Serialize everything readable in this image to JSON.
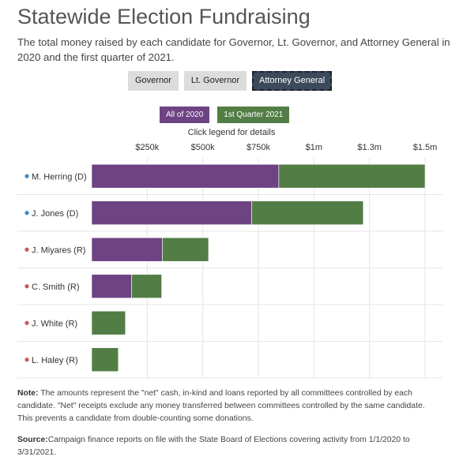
{
  "title": "Statewide Election Fundraising",
  "subtitle": "The total money raised by each candidate for Governor, Lt. Governor, and Attorney General in 2020 and the first quarter of 2021.",
  "tabs": [
    {
      "label": "Governor",
      "active": false
    },
    {
      "label": "Lt. Governor",
      "active": false
    },
    {
      "label": "Attorney General",
      "active": true
    }
  ],
  "legend_hint": "Click legend for details",
  "note": {
    "label": "Note:",
    "text": " The amounts represent the \"net\" cash, in-kind and loans reported by all committees controlled by each candidate. \"Net\" receipts exclude any money transferred between committees controlled by the same candidate. This prevents a candidate from double-counting some donations."
  },
  "source": {
    "label": "Source:",
    "text": "Campaign finance reports on file with the State Board of Elections covering activity from 1/1/2020 to 3/31/2021."
  },
  "colors": {
    "series_2020": "#6e4383",
    "series_q1_2021": "#527d45",
    "dem": "#3b8fd0",
    "rep": "#cc5a5a",
    "grid": "#e4e4e4"
  },
  "chart_data": {
    "type": "bar",
    "orientation": "horizontal",
    "stacked": true,
    "categories": [
      "M. Herring (D)",
      "J. Jones (D)",
      "J. Miyares (R)",
      "C. Smith (R)",
      "J. White (R)",
      "L. Haley (R)"
    ],
    "party": [
      "D",
      "D",
      "R",
      "R",
      "R",
      "R"
    ],
    "series": [
      {
        "name": "All of 2020",
        "values": [
          842000,
          720000,
          318000,
          180000,
          0,
          0
        ]
      },
      {
        "name": "1st Quarter 2021",
        "values": [
          658000,
          502000,
          208000,
          135000,
          152000,
          120000
        ]
      }
    ],
    "x_ticks": [
      250000,
      500000,
      750000,
      1000000,
      1250000,
      1500000
    ],
    "x_tick_labels": [
      "$250k",
      "$500k",
      "$750k",
      "$1m",
      "$1.3m",
      "$1.5m"
    ],
    "xlim": [
      0,
      1500000
    ],
    "grid": true,
    "legend_position": "top"
  }
}
